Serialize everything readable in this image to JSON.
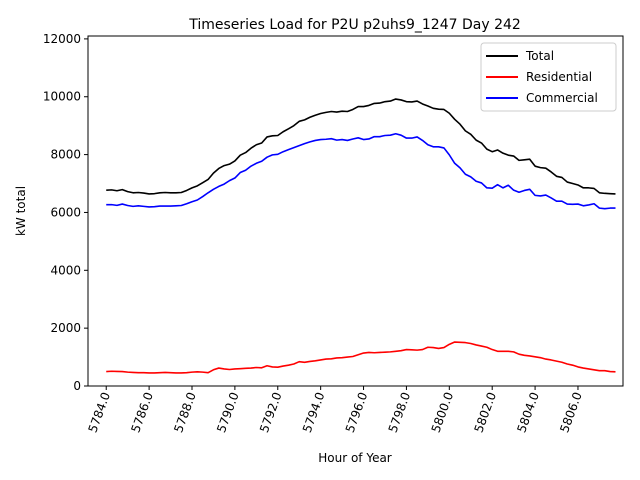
{
  "chart_data": {
    "type": "line",
    "title": "Timeseries Load for P2U p2uhs9_1247  Day 242",
    "xlabel": "Hour of Year",
    "ylabel": "kW total",
    "xlim": [
      5783.15,
      5808.1
    ],
    "ylim": [
      0,
      12100
    ],
    "grid": false,
    "legend_position": "top-right",
    "x_ticks": [
      5784,
      5786,
      5788,
      5790,
      5792,
      5794,
      5796,
      5798,
      5800,
      5802,
      5804,
      5806
    ],
    "x_tick_labels": [
      "5784.0",
      "5786.0",
      "5788.0",
      "5790.0",
      "5792.0",
      "5794.0",
      "5796.0",
      "5798.0",
      "5800.0",
      "5802.0",
      "5804.0",
      "5806.0"
    ],
    "y_ticks": [
      0,
      2000,
      4000,
      6000,
      8000,
      10000,
      12000
    ],
    "y_tick_labels": [
      "0",
      "2000",
      "4000",
      "6000",
      "8000",
      "10000",
      "12000"
    ],
    "x": [
      5784.0,
      5784.25,
      5784.5,
      5784.75,
      5785.0,
      5785.25,
      5785.5,
      5785.75,
      5786.0,
      5786.25,
      5786.5,
      5786.75,
      5787.0,
      5787.25,
      5787.5,
      5787.75,
      5788.0,
      5788.25,
      5788.5,
      5788.75,
      5789.0,
      5789.25,
      5789.5,
      5789.75,
      5790.0,
      5790.25,
      5790.5,
      5790.75,
      5791.0,
      5791.25,
      5791.5,
      5791.75,
      5792.0,
      5792.25,
      5792.5,
      5792.75,
      5793.0,
      5793.25,
      5793.5,
      5793.75,
      5794.0,
      5794.25,
      5794.5,
      5794.75,
      5795.0,
      5795.25,
      5795.5,
      5795.75,
      5796.0,
      5796.25,
      5796.5,
      5796.75,
      5797.0,
      5797.25,
      5797.5,
      5797.75,
      5798.0,
      5798.25,
      5798.5,
      5798.75,
      5799.0,
      5799.25,
      5799.5,
      5799.75,
      5800.0,
      5800.25,
      5800.5,
      5800.75,
      5801.0,
      5801.25,
      5801.5,
      5801.75,
      5802.0,
      5802.25,
      5802.5,
      5802.75,
      5803.0,
      5803.25,
      5803.5,
      5803.75,
      5804.0,
      5804.25,
      5804.5,
      5804.75,
      5805.0,
      5805.25,
      5805.5,
      5805.75,
      5806.0,
      5806.25,
      5806.5,
      5806.75,
      5807.0,
      5807.25,
      5807.5,
      5807.75
    ],
    "series": [
      {
        "name": "Total",
        "color": "#000000",
        "values": [
          6770,
          6780,
          6750,
          6790,
          6720,
          6680,
          6690,
          6670,
          6640,
          6650,
          6680,
          6690,
          6680,
          6680,
          6690,
          6760,
          6850,
          6920,
          7030,
          7140,
          7360,
          7520,
          7620,
          7670,
          7780,
          7980,
          8070,
          8220,
          8340,
          8400,
          8610,
          8650,
          8660,
          8790,
          8890,
          9000,
          9150,
          9200,
          9290,
          9360,
          9420,
          9460,
          9490,
          9470,
          9500,
          9490,
          9560,
          9660,
          9660,
          9700,
          9770,
          9780,
          9830,
          9850,
          9920,
          9890,
          9830,
          9820,
          9850,
          9750,
          9680,
          9600,
          9570,
          9560,
          9430,
          9220,
          9050,
          8820,
          8700,
          8500,
          8400,
          8190,
          8100,
          8160,
          8050,
          7980,
          7950,
          7800,
          7820,
          7840,
          7600,
          7550,
          7530,
          7400,
          7250,
          7210,
          7050,
          7000,
          6950,
          6850,
          6850,
          6830,
          6680,
          6660,
          6650,
          6640
        ]
      },
      {
        "name": "Residential",
        "color": "#ff0000",
        "values": [
          500,
          510,
          505,
          500,
          480,
          470,
          460,
          460,
          450,
          450,
          460,
          470,
          460,
          450,
          450,
          460,
          480,
          490,
          480,
          460,
          560,
          620,
          590,
          570,
          590,
          600,
          610,
          620,
          640,
          630,
          700,
          660,
          650,
          690,
          720,
          760,
          840,
          820,
          850,
          870,
          900,
          930,
          940,
          970,
          980,
          1000,
          1020,
          1080,
          1140,
          1160,
          1150,
          1160,
          1170,
          1180,
          1200,
          1220,
          1260,
          1250,
          1240,
          1260,
          1340,
          1330,
          1300,
          1330,
          1440,
          1520,
          1510,
          1500,
          1470,
          1420,
          1380,
          1340,
          1260,
          1200,
          1200,
          1200,
          1180,
          1100,
          1060,
          1040,
          1010,
          980,
          930,
          900,
          860,
          820,
          760,
          720,
          660,
          620,
          590,
          560,
          530,
          530,
          500,
          490
        ]
      },
      {
        "name": "Commercial",
        "color": "#0000ff",
        "values": [
          6270,
          6270,
          6245,
          6290,
          6240,
          6210,
          6230,
          6210,
          6190,
          6200,
          6220,
          6220,
          6220,
          6230,
          6240,
          6300,
          6370,
          6430,
          6550,
          6680,
          6800,
          6900,
          6980,
          7100,
          7190,
          7380,
          7460,
          7600,
          7700,
          7770,
          7910,
          7990,
          8010,
          8100,
          8170,
          8240,
          8310,
          8380,
          8440,
          8490,
          8520,
          8530,
          8550,
          8500,
          8520,
          8490,
          8540,
          8580,
          8520,
          8540,
          8620,
          8620,
          8660,
          8670,
          8720,
          8670,
          8570,
          8570,
          8610,
          8490,
          8340,
          8270,
          8270,
          8230,
          7990,
          7700,
          7540,
          7320,
          7230,
          7080,
          7020,
          6850,
          6840,
          6960,
          6850,
          6940,
          6770,
          6700,
          6760,
          6800,
          6590,
          6570,
          6600,
          6500,
          6390,
          6390,
          6290,
          6280,
          6290,
          6230,
          6260,
          6300,
          6150,
          6130,
          6150,
          6150
        ]
      }
    ]
  }
}
